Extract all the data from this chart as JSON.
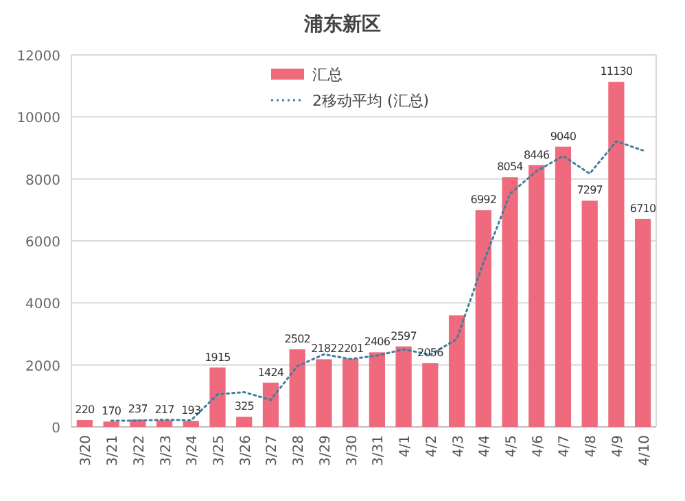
{
  "chart_data": {
    "type": "bar",
    "title": "浦东新区",
    "categories": [
      "3/20",
      "3/21",
      "3/22",
      "3/23",
      "3/24",
      "3/25",
      "3/26",
      "3/27",
      "3/28",
      "3/29",
      "3/30",
      "3/31",
      "4/1",
      "4/2",
      "4/3",
      "4/4",
      "4/5",
      "4/6",
      "4/7",
      "4/8",
      "4/9",
      "4/10"
    ],
    "series": [
      {
        "name": "汇总",
        "color": "#ee6a7c",
        "values": [
          220,
          170,
          237,
          217,
          193,
          1915,
          325,
          1424,
          2502,
          2182,
          2201,
          2406,
          2597,
          2056,
          3600,
          6992,
          8054,
          8446,
          9040,
          7297,
          11130,
          6710
        ],
        "value_labels": [
          "220",
          "170",
          "237",
          "217",
          "193",
          "1915",
          "325",
          "1424",
          "2502",
          "2182",
          "2201",
          "2406",
          "2597",
          "2056",
          null,
          "6992",
          "8054",
          "8446",
          "9040",
          "7297",
          "11130",
          "6710"
        ]
      },
      {
        "name": "2移动平均 (汇总)",
        "type": "line",
        "color": "#3f7f9c",
        "line_style": "dotted",
        "marker": "none",
        "values": [
          null,
          200,
          200,
          230,
          210,
          1050,
          1120,
          870,
          1960,
          2340,
          2190,
          2300,
          2500,
          2330,
          2830,
          5300,
          7520,
          8250,
          8740,
          8170,
          9210,
          8920
        ]
      }
    ],
    "ylim": [
      0,
      12000
    ],
    "yticks": [
      0,
      2000,
      4000,
      6000,
      8000,
      10000,
      12000
    ],
    "grid": "y",
    "legend": "top"
  }
}
